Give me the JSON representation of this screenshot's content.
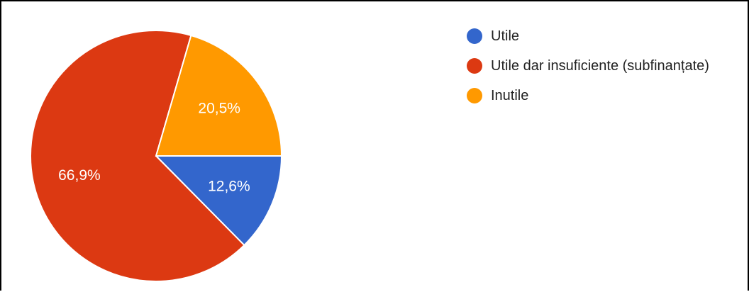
{
  "chart_data": {
    "type": "pie",
    "title": "",
    "legend_position": "top-right",
    "series": [
      {
        "categories": [
          "Utile",
          "Utile dar insuficiente (subfinanțate)",
          "Inutile"
        ],
        "values": [
          12.6,
          66.9,
          20.5
        ],
        "value_labels": [
          "12,6%",
          "66,9%",
          "20,5%"
        ],
        "colors": [
          "#3366cc",
          "#dc3912",
          "#ff9900"
        ]
      }
    ]
  }
}
